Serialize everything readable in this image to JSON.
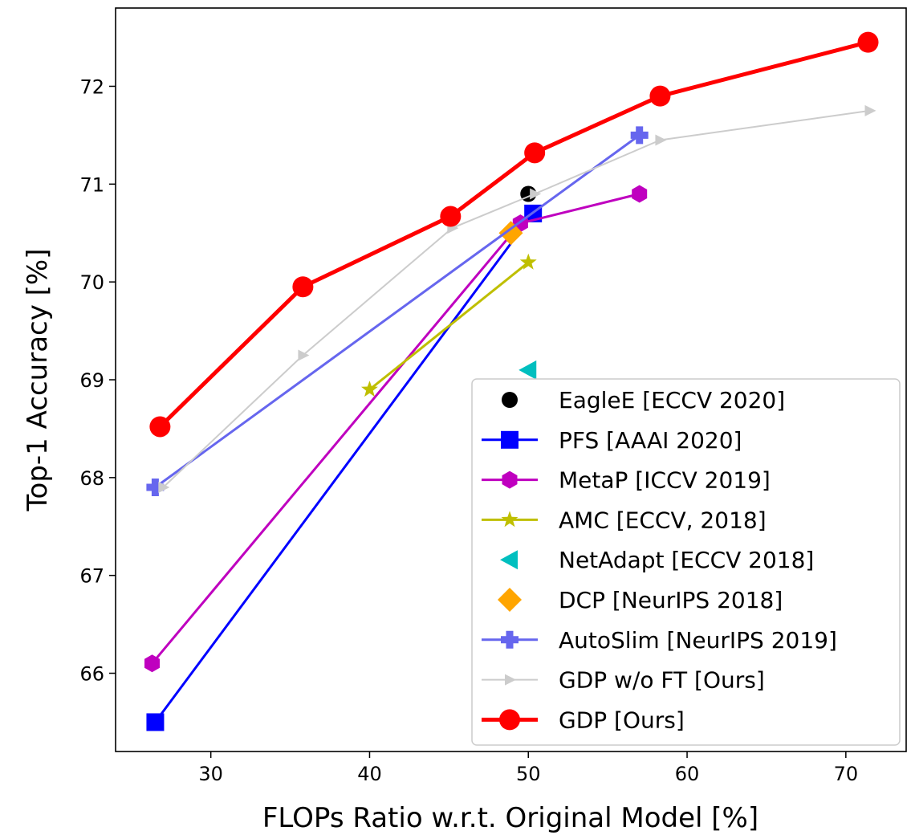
{
  "chart_data": {
    "type": "line",
    "title": "",
    "xlabel": "FLOPs Ratio w.r.t. Original Model [%]",
    "ylabel": "Top-1 Accuracy [%]",
    "xlim": [
      24,
      73.8
    ],
    "ylim": [
      65.2,
      72.8
    ],
    "xticks": [
      30,
      40,
      50,
      60,
      70
    ],
    "yticks": [
      66,
      67,
      68,
      69,
      70,
      71,
      72
    ],
    "grid": false,
    "legend_position": "lower-right",
    "series": [
      {
        "name": "EagleE [ECCV 2020]",
        "color": "#000000",
        "marker": "circle",
        "line": false,
        "x": [
          50.0
        ],
        "y": [
          70.9
        ]
      },
      {
        "name": "PFS [AAAI 2020]",
        "color": "#0000ff",
        "marker": "square",
        "line": true,
        "x": [
          26.5,
          50.3
        ],
        "y": [
          65.5,
          70.7
        ]
      },
      {
        "name": "MetaP [ICCV 2019]",
        "color": "#bf00bf",
        "marker": "hexagon",
        "line": true,
        "x": [
          26.3,
          49.5,
          57.0
        ],
        "y": [
          66.1,
          70.6,
          70.9
        ]
      },
      {
        "name": "AMC [ECCV, 2018]",
        "color": "#bfbf00",
        "marker": "star",
        "line": true,
        "x": [
          40.0,
          50.0
        ],
        "y": [
          68.9,
          70.2
        ]
      },
      {
        "name": "NetAdapt [ECCV 2018]",
        "color": "#00bfbf",
        "marker": "triangle-left",
        "line": false,
        "x": [
          50.0
        ],
        "y": [
          69.1
        ]
      },
      {
        "name": "DCP [NeurIPS 2018]",
        "color": "#ffa500",
        "marker": "diamond",
        "line": false,
        "x": [
          48.9
        ],
        "y": [
          70.5
        ]
      },
      {
        "name": "AutoSlim [NeurIPS 2019]",
        "color": "#6666ee",
        "marker": "plus",
        "line": true,
        "x": [
          26.5,
          57.0
        ],
        "y": [
          67.9,
          71.5
        ]
      },
      {
        "name": "GDP w/o FT [Ours]",
        "color": "#cccccc",
        "marker": "triangle-right",
        "line": true,
        "x": [
          27.0,
          35.8,
          45.2,
          50.4,
          58.3,
          71.5
        ],
        "y": [
          67.9,
          69.25,
          70.55,
          70.9,
          71.45,
          71.75
        ]
      },
      {
        "name": "GDP [Ours]",
        "color": "#ff0000",
        "marker": "circle-large",
        "line": true,
        "x": [
          26.8,
          35.8,
          45.1,
          50.4,
          58.3,
          71.4
        ],
        "y": [
          68.52,
          69.95,
          70.67,
          71.32,
          71.9,
          72.45
        ]
      }
    ]
  }
}
